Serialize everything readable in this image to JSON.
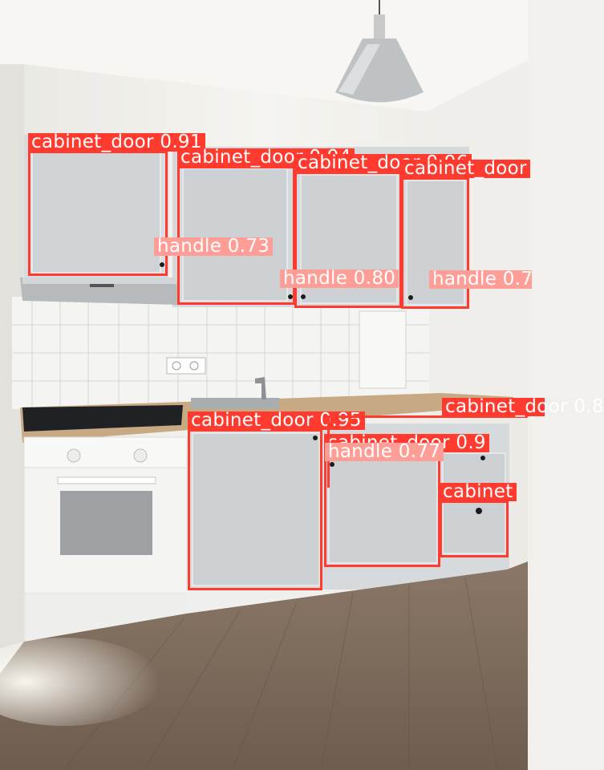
{
  "colors": {
    "cabinet_box": "#ff3b30",
    "handle_box": "#ff9d97",
    "label_text": "#ffffff"
  },
  "detections": [
    {
      "id": "d1",
      "label": "cabinet_door 0.91",
      "class": "cabinet_door",
      "score": 0.91
    },
    {
      "id": "d2",
      "label": "cabinet_door 0.94",
      "class": "cabinet_door",
      "score": 0.94
    },
    {
      "id": "d3",
      "label": "cabinet_door 0.96",
      "class": "cabinet_door",
      "score": 0.96
    },
    {
      "id": "d4",
      "label": "cabinet_door",
      "class": "cabinet_door"
    },
    {
      "id": "d5",
      "label": "handle 0.73",
      "class": "handle",
      "score": 0.73
    },
    {
      "id": "d6",
      "label": "handle 0.80",
      "class": "handle",
      "score": 0.8
    },
    {
      "id": "d7",
      "label": "handle 0.7",
      "class": "handle",
      "score": 0.7
    },
    {
      "id": "d8",
      "label": "cabinet_door 0.95",
      "class": "cabinet_door",
      "score": 0.95
    },
    {
      "id": "d9",
      "label": "cabinet_door 0.9",
      "class": "cabinet_door",
      "score": 0.9
    },
    {
      "id": "d10",
      "label": "cabinet_door 0.8",
      "class": "cabinet_door",
      "score": 0.8
    },
    {
      "id": "d11",
      "label": "handle 0.77",
      "class": "handle",
      "score": 0.77
    },
    {
      "id": "d12",
      "label": "cabinet",
      "class": "cabinet_door"
    }
  ]
}
